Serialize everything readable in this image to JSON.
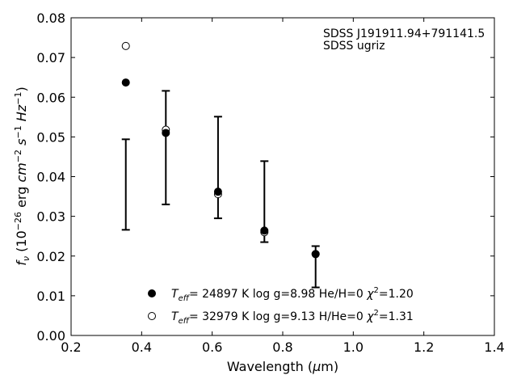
{
  "chart_data": {
    "type": "scatter",
    "xlabel": "Wavelength (μm)",
    "ylabel": "f_ν (10^−26 erg cm^−2 s^−1 Hz^−1)",
    "xlim": [
      0.2,
      1.4
    ],
    "ylim": [
      0.0,
      0.08
    ],
    "x_ticks": [
      "0.2",
      "0.4",
      "0.6",
      "0.8",
      "1.0",
      "1.2",
      "1.4"
    ],
    "y_ticks": [
      "0.00",
      "0.01",
      "0.02",
      "0.03",
      "0.04",
      "0.05",
      "0.06",
      "0.07",
      "0.08"
    ],
    "grid": false,
    "legend_position": "lower-center",
    "annotations": [
      "SDSS J191911.94+791141.5",
      "SDSS ugriz"
    ],
    "observed": {
      "x": [
        0.3551,
        0.4686,
        0.6166,
        0.748,
        0.8932
      ],
      "y": [
        0.038,
        0.0473,
        0.0423,
        0.0337,
        0.0173
      ],
      "yerr": [
        0.0114,
        0.0143,
        0.0128,
        0.0102,
        0.0052
      ]
    },
    "series": [
      {
        "name": "Teff= 24897 K  log g=8.98  He/H=0  χ²=1.20",
        "marker": "filled-circle",
        "x": [
          0.3551,
          0.4686,
          0.6166,
          0.748,
          0.8932
        ],
        "y": [
          0.0637,
          0.051,
          0.0362,
          0.0264,
          0.0205
        ]
      },
      {
        "name": "Teff= 32979 K  log g=9.13  H/He=0  χ²=1.31",
        "marker": "open-circle",
        "x": [
          0.3551,
          0.4686,
          0.6166,
          0.748,
          0.8932
        ],
        "y": [
          0.0729,
          0.0518,
          0.0356,
          0.026,
          0.0205
        ]
      }
    ]
  }
}
